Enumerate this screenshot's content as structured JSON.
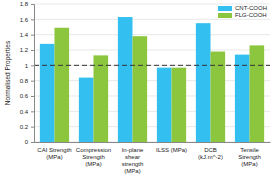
{
  "chart_data": {
    "type": "bar",
    "y_label": "Normalised Properties",
    "categories": [
      "CAI Strength (MPa)",
      "Compression Strength (MPa)",
      "In-plane shear strength (MPa)",
      "ILSS (MPa)",
      "DCB (kJ.m^-2)",
      "Tensile Strength (MPa)"
    ],
    "series": [
      {
        "name": "CNT-COOH",
        "color": "#33bfef",
        "values": [
          1.28,
          0.84,
          1.63,
          0.97,
          1.55,
          1.14
        ]
      },
      {
        "name": "FLG-COOH",
        "color": "#8cc63f",
        "values": [
          1.49,
          1.13,
          1.38,
          0.97,
          1.18,
          1.26
        ]
      }
    ],
    "reference_line": 1,
    "ylim": [
      0,
      1.8
    ],
    "yticks": [
      0,
      0.2,
      0.4,
      0.6,
      0.8,
      1,
      1.2,
      1.4,
      1.6,
      1.8
    ],
    "grid": true,
    "legend": "top-right"
  }
}
